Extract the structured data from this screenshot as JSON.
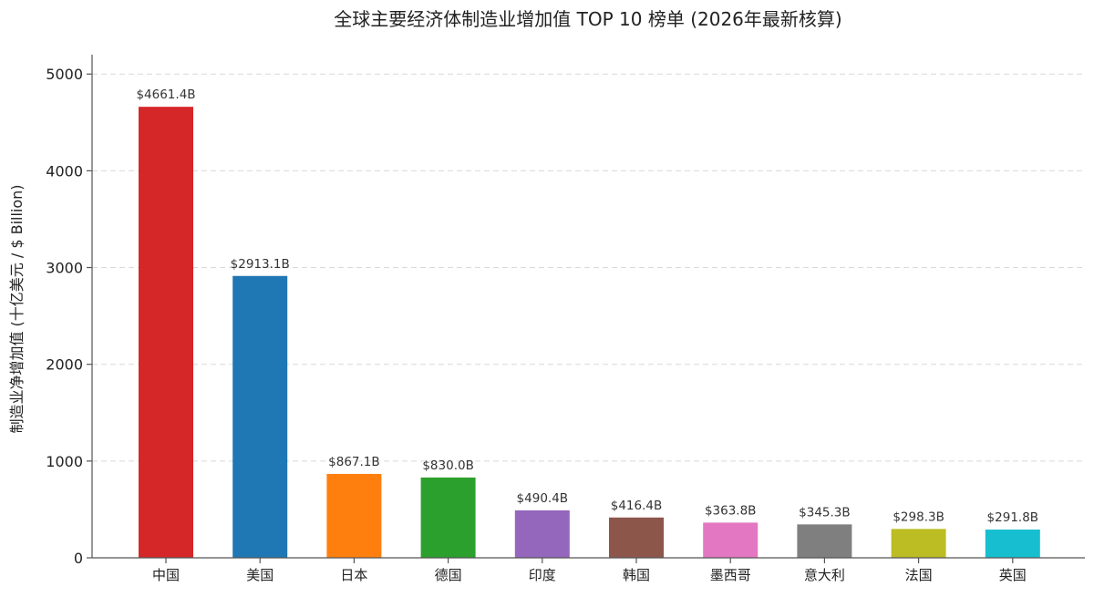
{
  "chart_data": {
    "type": "bar",
    "title": "全球主要经济体制造业增加值 TOP 10 榜单 (2026年最新核算)",
    "xlabel": "",
    "ylabel": "制造业净增加值 (十亿美元 / $ Billion)",
    "ylim": [
      0,
      5200
    ],
    "yticks": [
      0,
      1000,
      2000,
      3000,
      4000,
      5000
    ],
    "grid": true,
    "categories": [
      "中国",
      "美国",
      "日本",
      "德国",
      "印度",
      "韩国",
      "墨西哥",
      "意大利",
      "法国",
      "英国"
    ],
    "values": [
      4661.4,
      2913.1,
      867.1,
      830.0,
      490.4,
      416.4,
      363.8,
      345.3,
      298.3,
      291.8
    ],
    "data_labels": [
      "$4661.4B",
      "$2913.1B",
      "$867.1B",
      "$830.0B",
      "$490.4B",
      "$416.4B",
      "$363.8B",
      "$345.3B",
      "$298.3B",
      "$291.8B"
    ],
    "colors": [
      "#d62728",
      "#1f77b4",
      "#ff7f0e",
      "#2ca02c",
      "#9467bd",
      "#8c564b",
      "#e377c2",
      "#7f7f7f",
      "#bcbd22",
      "#17becf"
    ]
  }
}
